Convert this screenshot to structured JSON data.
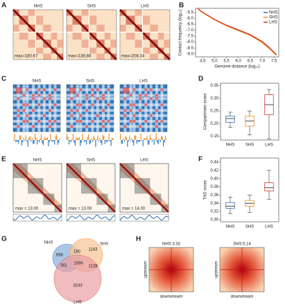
{
  "panel_letters": [
    "A",
    "B",
    "C",
    "D",
    "E",
    "F",
    "G",
    "H"
  ],
  "panel_a": {
    "maps": [
      {
        "title": "NHS",
        "max": "max=180.67"
      },
      {
        "title": "SHS",
        "max": "max=138.88"
      },
      {
        "title": "LHS",
        "max": "max=208.34"
      }
    ]
  },
  "panel_c": {
    "maps": [
      {
        "title": "NHS"
      },
      {
        "title": "SHS"
      },
      {
        "title": "LHS"
      }
    ]
  },
  "panel_e": {
    "maps": [
      {
        "title": "NHS",
        "max": "max = 13.00"
      },
      {
        "title": "SHS",
        "max": "max = 13.00"
      },
      {
        "title": "LHS",
        "max": "max = 14.00"
      }
    ]
  },
  "panel_g": {
    "sets": [
      "NHS",
      "SHS",
      "LHS"
    ],
    "regions": {
      "nhs_only": 666,
      "shs_only": 1143,
      "nhs_shs": 180,
      "nhs_lhs": 361,
      "all": 1099,
      "shs_lhs": 1128,
      "lhs_only": 3243
    }
  },
  "panel_h": {
    "maps": [
      {
        "title": "NHS:3.33"
      },
      {
        "title": "SHS:5.14"
      }
    ],
    "y_label": "upstream",
    "x_label": "downstream"
  },
  "chart_data": [
    {
      "type": "line",
      "xlabel": "Genome distance (log₁₀)",
      "ylabel": "Contact frequency (log₁₀)",
      "x": [
        4.3,
        4.5,
        5.0,
        5.5,
        6.0,
        6.5,
        7.0,
        7.3,
        7.6
      ],
      "series": [
        {
          "name": "NHS",
          "color": "#2b6cb0",
          "values": [
            -5.2,
            -5.5,
            -6.1,
            -6.6,
            -7.0,
            -7.4,
            -8.0,
            -8.5,
            -9.1
          ]
        },
        {
          "name": "SHS",
          "color": "#f08a24",
          "values": [
            -5.22,
            -5.52,
            -6.13,
            -6.63,
            -7.04,
            -7.44,
            -8.05,
            -8.55,
            -9.12
          ]
        },
        {
          "name": "LHS",
          "color": "#d23c2c",
          "values": [
            -5.18,
            -5.48,
            -6.08,
            -6.57,
            -6.96,
            -7.36,
            -7.95,
            -8.45,
            -9.05
          ]
        }
      ],
      "xlim": [
        4.2,
        7.7
      ],
      "ylim": [
        -9.25,
        -5.15
      ],
      "xticks": [
        4.5,
        {
          "value": 5.0,
          "label": "5.0"
        },
        5.5,
        {
          "value": 6.0,
          "label": "6.0"
        },
        6.5,
        {
          "value": 7.0,
          "label": "7.0"
        },
        7.5
      ],
      "yticks": [
        -5.5,
        {
          "value": -6.0,
          "label": "-6.0"
        },
        -6.5,
        {
          "value": -7.0,
          "label": "-7.0"
        },
        -7.5,
        {
          "value": -8.0,
          "label": "-8.0"
        },
        -8.5,
        {
          "value": -9.0,
          "label": "-9.0"
        }
      ],
      "legend": "upper right"
    },
    {
      "type": "box",
      "ylabel": "Compartment score",
      "categories": [
        "NHS",
        "SHS",
        "LHS"
      ],
      "colors": [
        "#2b6cb0",
        "#f08a24",
        "#d23c2c"
      ],
      "whisker_low": [
        0.185,
        0.155,
        0.14
      ],
      "q1": [
        0.205,
        0.19,
        0.235
      ],
      "median": [
        0.22,
        0.21,
        0.275
      ],
      "q3": [
        0.23,
        0.23,
        0.315
      ],
      "whisker_high": [
        0.245,
        0.25,
        0.335
      ],
      "ylim": [
        0.135,
        0.36
      ],
      "yticks": [
        0.15,
        {
          "value": 0.2,
          "label": "0.20"
        },
        0.25,
        {
          "value": 0.3,
          "label": "0.30"
        },
        0.35
      ]
    },
    {
      "type": "box",
      "ylabel": "TAD score",
      "categories": [
        "NHS",
        "SHS",
        "LHS"
      ],
      "colors": [
        "#2b6cb0",
        "#f08a24",
        "#d23c2c"
      ],
      "whisker_low": [
        0.315,
        0.318,
        0.35
      ],
      "q1": [
        0.328,
        0.333,
        0.37
      ],
      "median": [
        0.333,
        0.34,
        0.378
      ],
      "q3": [
        0.342,
        0.347,
        0.39
      ],
      "whisker_high": [
        0.355,
        0.36,
        0.42
      ],
      "ylim": [
        0.295,
        0.45
      ],
      "yticks": [
        {
          "value": 0.3,
          "label": "0.30"
        },
        0.32,
        0.34,
        0.36,
        0.38,
        {
          "value": 0.4,
          "label": "0.40"
        },
        0.42,
        0.44
      ]
    }
  ]
}
